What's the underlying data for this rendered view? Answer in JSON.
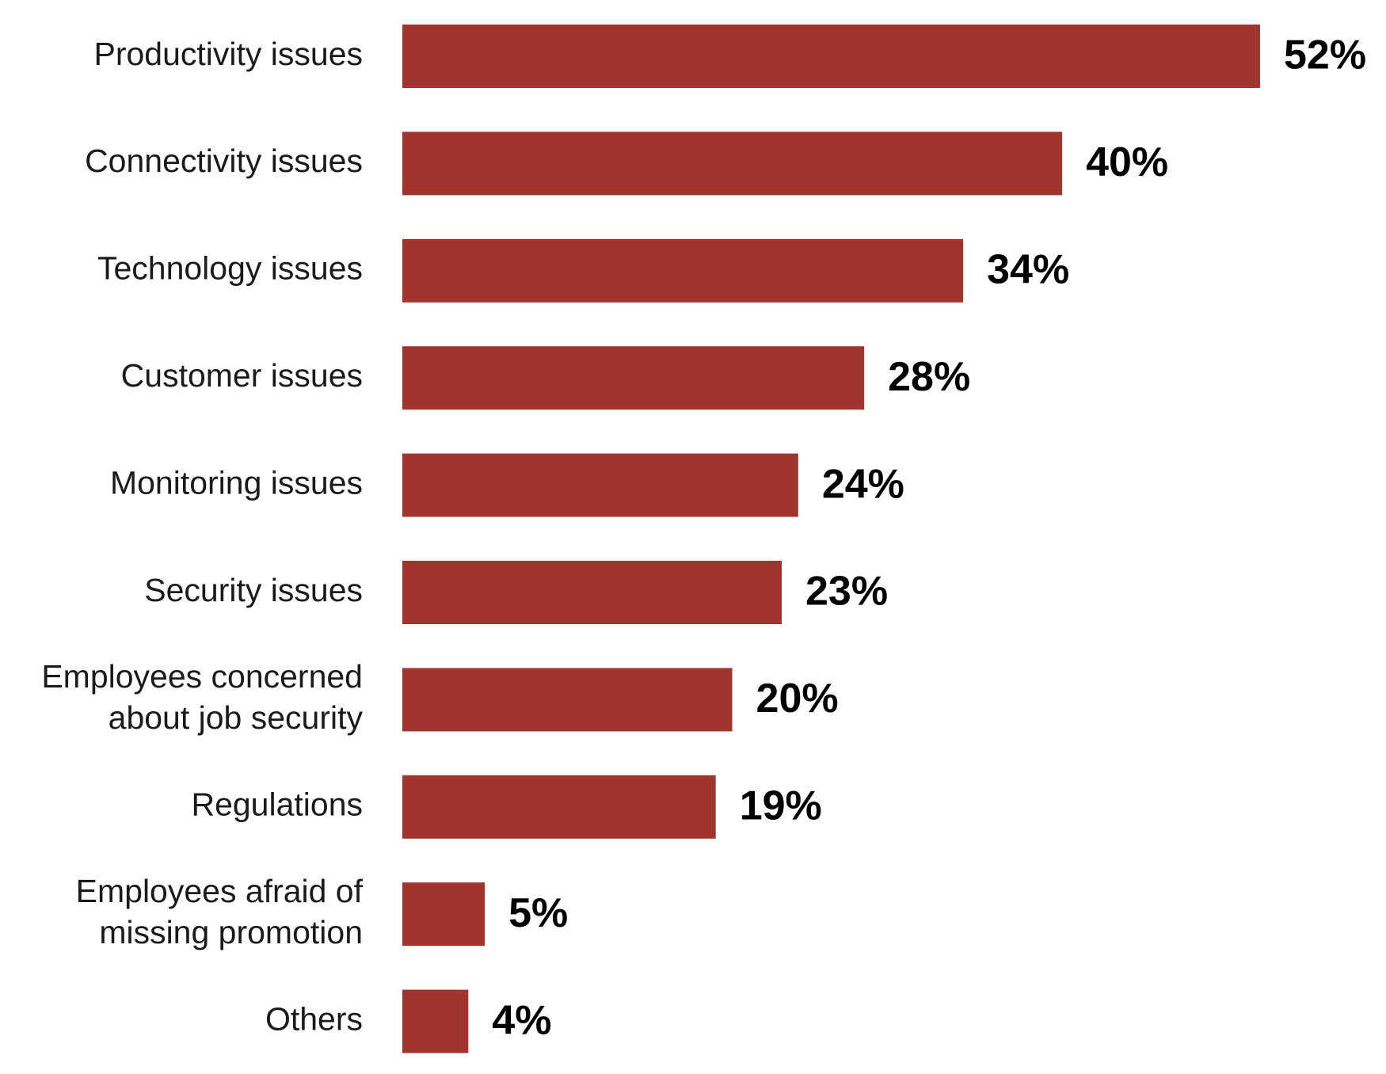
{
  "chart_data": {
    "type": "bar",
    "orientation": "horizontal",
    "categories": [
      "Productivity issues",
      "Connectivity issues",
      "Technology issues",
      "Customer issues",
      "Monitoring issues",
      "Security issues",
      "Employees concerned about job security",
      "Regulations",
      "Employees afraid of missing promotion",
      "Others"
    ],
    "category_lines": [
      [
        "Productivity issues"
      ],
      [
        "Connectivity issues"
      ],
      [
        "Technology issues"
      ],
      [
        "Customer issues"
      ],
      [
        "Monitoring issues"
      ],
      [
        "Security issues"
      ],
      [
        "Employees concerned",
        "about job security"
      ],
      [
        "Regulations"
      ],
      [
        "Employees afraid of",
        "missing promotion"
      ],
      [
        "Others"
      ]
    ],
    "values": [
      52,
      40,
      34,
      28,
      24,
      23,
      20,
      19,
      5,
      4
    ],
    "value_labels": [
      "52%",
      "40%",
      "34%",
      "28%",
      "24%",
      "23%",
      "20%",
      "19%",
      "5%",
      "4%"
    ],
    "unit": "%",
    "bar_color": "#A0352D",
    "grid": false,
    "legend": "none"
  }
}
